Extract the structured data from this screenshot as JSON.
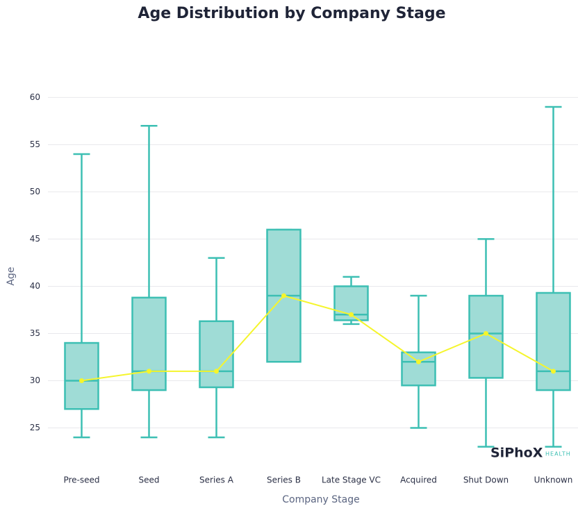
{
  "chart_data": {
    "type": "box",
    "title": "Age Distribution by Company Stage",
    "x_label": "Company Stage",
    "y_label": "Age",
    "categories": [
      "Pre-seed",
      "Seed",
      "Series A",
      "Series B",
      "Late Stage VC",
      "Acquired",
      "Shut Down",
      "Unknown"
    ],
    "boxes": [
      {
        "min": 24,
        "q1": 27,
        "median": 30,
        "q3": 34,
        "max": 54
      },
      {
        "min": 24,
        "q1": 29,
        "median": 31,
        "q3": 38.8,
        "max": 57
      },
      {
        "min": 24,
        "q1": 29.3,
        "median": 31,
        "q3": 36.3,
        "max": 43
      },
      {
        "min": 32,
        "q1": 32,
        "median": 39,
        "q3": 46,
        "max": 46
      },
      {
        "min": 36,
        "q1": 36.4,
        "median": 37,
        "q3": 40,
        "max": 41
      },
      {
        "min": 25,
        "q1": 29.5,
        "median": 32,
        "q3": 33,
        "max": 39
      },
      {
        "min": 23,
        "q1": 30.3,
        "median": 35,
        "q3": 39,
        "max": 45
      },
      {
        "min": 23,
        "q1": 29,
        "median": 31,
        "q3": 39.3,
        "max": 59
      }
    ],
    "box_color": "#3cbfb3",
    "box_fill": "#9fdcd6",
    "line": {
      "color": "#f5f52c",
      "values": [
        30,
        31,
        31,
        39,
        37,
        32,
        35,
        31
      ]
    },
    "ylim": [
      21.8,
      61.5
    ],
    "yticks": [
      25,
      30,
      35,
      40,
      45,
      50,
      55,
      60
    ],
    "grid": true,
    "logo": "SiPhoX",
    "logo_sub": "HEALTH"
  }
}
